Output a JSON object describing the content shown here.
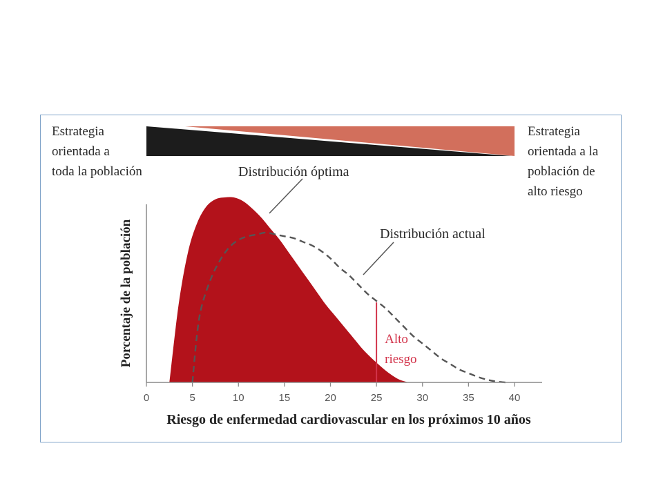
{
  "left_strategy": "Estrategia\norientada a\ntoda la población",
  "right_strategy": "Estrategia\norientada a la\npoblación de\nalto riesgo",
  "colors": {
    "optimal_fill": "#b3121b",
    "wedge_dark": "#1c1c1c",
    "wedge_salmon": "#d26f5c",
    "high_risk_line": "#d2334a",
    "dashed": "#555555"
  },
  "chart_data": {
    "type": "area",
    "title": "",
    "xlabel": "Riesgo de enfermedad cardiovascular en los próximos 10 años",
    "ylabel": "Porcentaje de la población",
    "xlim": [
      0,
      43
    ],
    "ylim": [
      0,
      1
    ],
    "xticks": [
      "0",
      "5",
      "10",
      "15",
      "20",
      "25",
      "30",
      "35",
      "40"
    ],
    "grid": false,
    "series": [
      {
        "name": "Distribución óptima",
        "style": "filled",
        "x": [
          2.5,
          3.5,
          4.5,
          5.5,
          6.5,
          7.5,
          8.5,
          9.5,
          10.5,
          11.5,
          12.5,
          13.5,
          14.5,
          15.5,
          16.5,
          17.5,
          18.5,
          19.5,
          20.5,
          21.5,
          22.5,
          23.5,
          24.5,
          25.5,
          26.5,
          27.5,
          28.5
        ],
        "y": [
          0,
          0.42,
          0.7,
          0.86,
          0.95,
          0.99,
          1.0,
          1.0,
          0.98,
          0.94,
          0.89,
          0.83,
          0.77,
          0.7,
          0.63,
          0.56,
          0.49,
          0.42,
          0.36,
          0.3,
          0.24,
          0.18,
          0.13,
          0.085,
          0.045,
          0.015,
          0
        ]
      },
      {
        "name": "Distribución actual",
        "style": "dashed",
        "x": [
          5,
          5.5,
          6,
          7,
          8,
          9,
          10,
          11,
          12,
          13,
          14,
          15,
          16,
          17,
          18,
          19,
          20,
          21,
          22,
          23,
          24,
          25,
          26,
          27,
          28,
          29,
          30,
          31,
          32,
          33,
          34,
          35,
          36,
          37,
          38,
          39
        ],
        "y": [
          0,
          0.26,
          0.41,
          0.56,
          0.66,
          0.73,
          0.77,
          0.79,
          0.8,
          0.81,
          0.8,
          0.79,
          0.78,
          0.76,
          0.74,
          0.71,
          0.67,
          0.62,
          0.58,
          0.53,
          0.48,
          0.44,
          0.4,
          0.35,
          0.3,
          0.25,
          0.21,
          0.17,
          0.13,
          0.1,
          0.07,
          0.05,
          0.03,
          0.015,
          0.005,
          0
        ]
      }
    ],
    "high_risk": {
      "x": 25,
      "label": "Alto\nriesgo"
    },
    "annotations": {
      "optimal": "Distribución óptima",
      "actual": "Distribución actual"
    }
  }
}
